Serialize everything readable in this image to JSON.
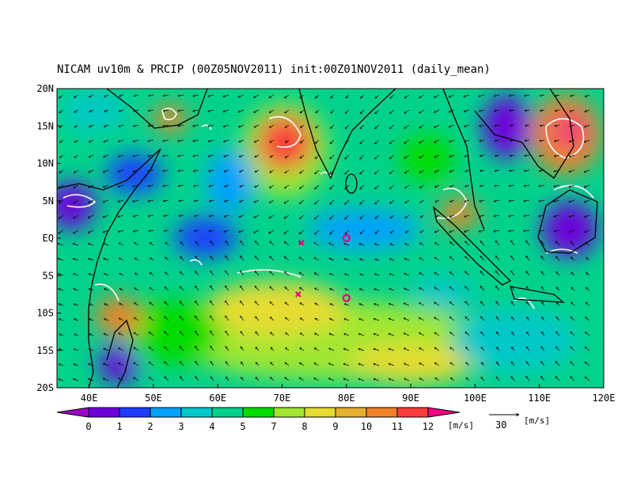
{
  "title": "NICAM uv10m & PRCIP (00Z05NOV2011) init:00Z01NOV2011 (daily_mean)",
  "map": {
    "lon_range": [
      35,
      120
    ],
    "lat_range": [
      -20,
      20
    ],
    "xticks": [
      {
        "value": 40,
        "label": "40E"
      },
      {
        "value": 50,
        "label": "50E"
      },
      {
        "value": 60,
        "label": "60E"
      },
      {
        "value": 70,
        "label": "70E"
      },
      {
        "value": 80,
        "label": "80E"
      },
      {
        "value": 90,
        "label": "90E"
      },
      {
        "value": 100,
        "label": "100E"
      },
      {
        "value": 110,
        "label": "110E"
      },
      {
        "value": 120,
        "label": "120E"
      }
    ],
    "yticks": [
      {
        "value": 20,
        "label": "20N"
      },
      {
        "value": 15,
        "label": "15N"
      },
      {
        "value": 10,
        "label": "10N"
      },
      {
        "value": 5,
        "label": "5N"
      },
      {
        "value": 0,
        "label": "EQ"
      },
      {
        "value": -5,
        "label": "5S"
      },
      {
        "value": -10,
        "label": "10S"
      },
      {
        "value": -15,
        "label": "15S"
      },
      {
        "value": -20,
        "label": "20S"
      }
    ],
    "markers": [
      {
        "lon": 73,
        "lat": -0.6,
        "symbol": "x"
      },
      {
        "lon": 72.5,
        "lat": -7.5,
        "symbol": "x"
      },
      {
        "lon": 80,
        "lat": 0,
        "symbol": "o"
      },
      {
        "lon": 80,
        "lat": -8,
        "symbol": "o"
      }
    ],
    "marker_color": "#e6007e"
  },
  "colorbar": {
    "labels": [
      "0",
      "1",
      "2",
      "3",
      "4",
      "5",
      "7",
      "8",
      "9",
      "10",
      "11",
      "12"
    ],
    "colors": [
      "#a000c8",
      "#6e00dc",
      "#1e3cff",
      "#00a0ff",
      "#00c8c8",
      "#00d28c",
      "#00dc00",
      "#a0e632",
      "#e6dc32",
      "#e6af2d",
      "#f08228",
      "#fa3c3c",
      "#f00082"
    ],
    "unit": "[m/s]"
  },
  "reference_vector": {
    "label": "30",
    "unit": "[m/s]"
  }
}
